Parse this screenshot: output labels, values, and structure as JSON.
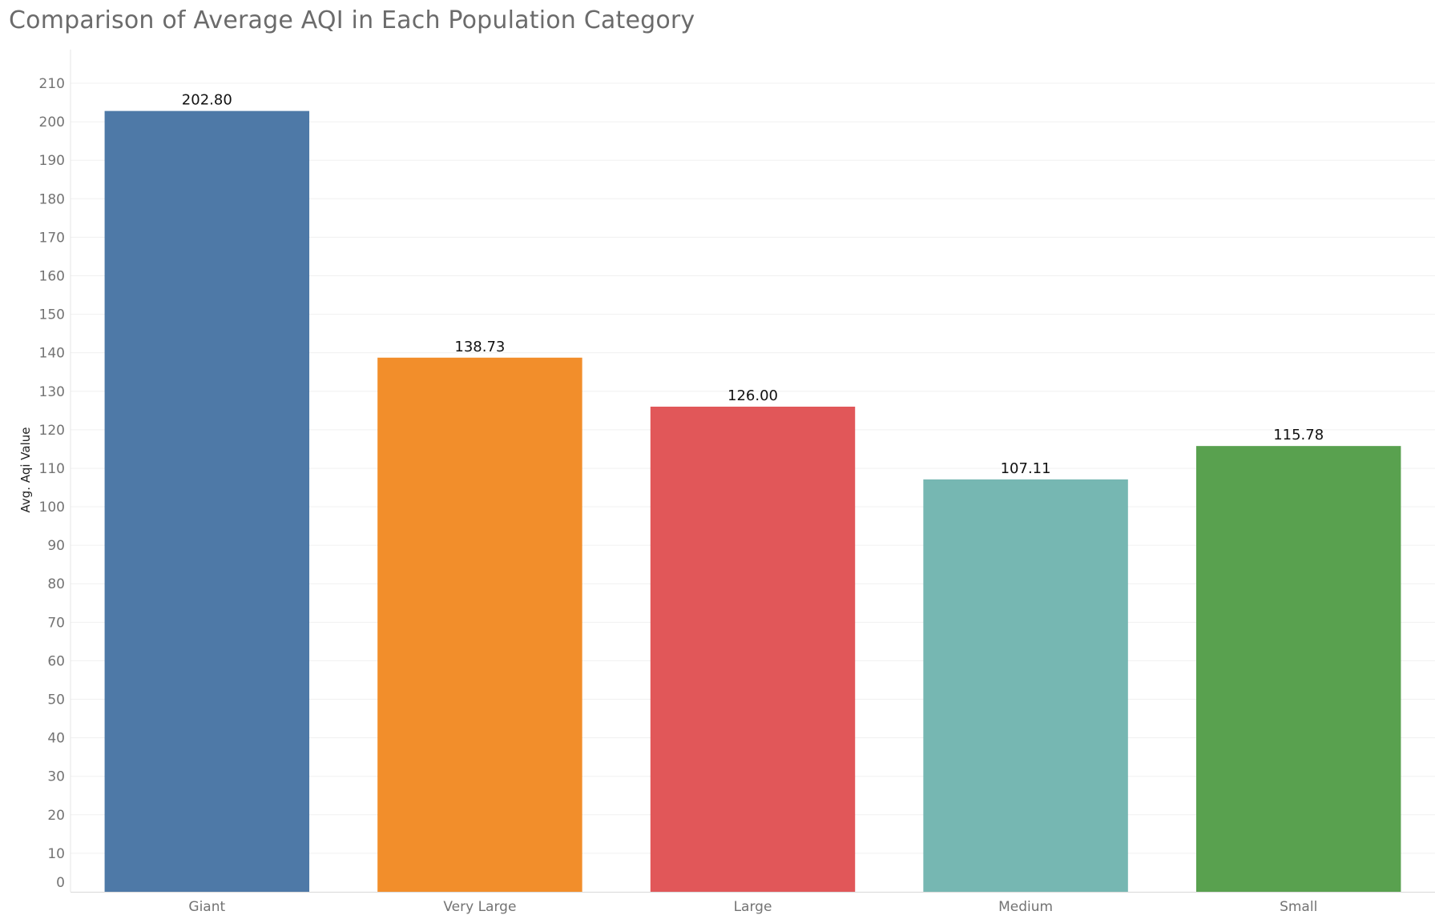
{
  "chart_data": {
    "type": "bar",
    "title": "Comparison of Average AQI in Each Population Category",
    "xlabel": "",
    "ylabel": "Avg. Aqi Value",
    "categories": [
      "Giant",
      "Very Large",
      "Large",
      "Medium",
      "Small"
    ],
    "values": [
      202.8,
      138.73,
      126.0,
      107.11,
      115.78
    ],
    "value_labels": [
      "202.80",
      "138.73",
      "126.00",
      "107.11",
      "115.78"
    ],
    "colors": [
      "#4e79a7",
      "#f28e2b",
      "#e15759",
      "#76b7b2",
      "#59a14f"
    ],
    "ylim": [
      0,
      210
    ],
    "yticks": [
      0,
      10,
      20,
      30,
      40,
      50,
      60,
      70,
      80,
      90,
      100,
      110,
      120,
      130,
      140,
      150,
      160,
      170,
      180,
      190,
      200,
      210
    ],
    "grid": true,
    "legend": "none"
  }
}
